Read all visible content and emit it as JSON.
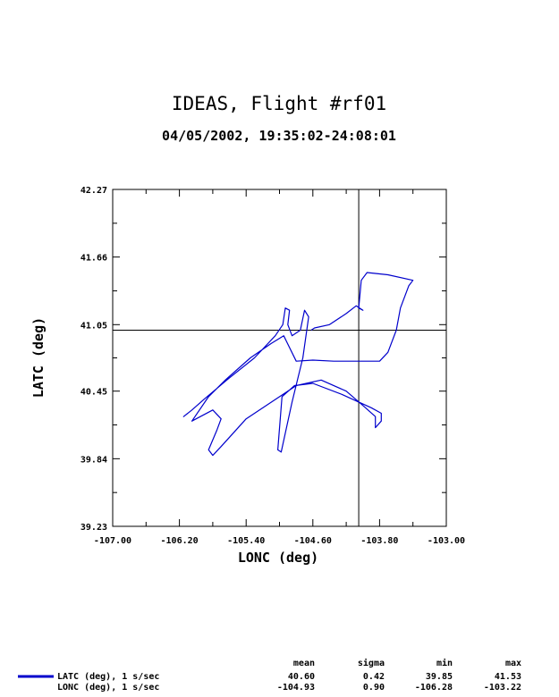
{
  "chart_data": {
    "type": "line",
    "title": "IDEAS, Flight #rf01",
    "subtitle": "04/05/2002, 19:35:02-24:08:01",
    "xlabel": "LONC (deg)",
    "ylabel": "LATC (deg)",
    "xlim": [
      -107.0,
      -103.0
    ],
    "ylim": [
      39.23,
      42.27
    ],
    "x_ticks": [
      "-107.00",
      "-106.20",
      "-105.40",
      "-104.60",
      "-103.80",
      "-103.00"
    ],
    "y_ticks": [
      "39.23",
      "39.84",
      "40.45",
      "41.05",
      "41.66",
      "42.27"
    ],
    "crosshair": {
      "x": -104.05,
      "y": 41.0
    },
    "color": "#0000cc",
    "series": [
      {
        "name": "LATC (deg), 1 s/sec",
        "points": [
          [
            -106.1,
            40.25
          ],
          [
            -106.15,
            40.22
          ],
          [
            -106.05,
            40.28
          ],
          [
            -105.9,
            40.38
          ],
          [
            -105.6,
            40.57
          ],
          [
            -105.3,
            40.75
          ],
          [
            -105.05,
            40.95
          ],
          [
            -104.96,
            41.05
          ],
          [
            -104.93,
            41.2
          ],
          [
            -104.88,
            41.18
          ],
          [
            -104.9,
            41.05
          ],
          [
            -104.85,
            40.95
          ],
          [
            -104.75,
            41.0
          ],
          [
            -104.7,
            41.18
          ],
          [
            -104.65,
            41.12
          ],
          [
            -104.72,
            40.75
          ],
          [
            -104.85,
            40.35
          ],
          [
            -104.98,
            39.9
          ],
          [
            -105.02,
            39.92
          ],
          [
            -104.97,
            40.4
          ],
          [
            -104.82,
            40.5
          ],
          [
            -104.6,
            40.52
          ],
          [
            -104.25,
            40.42
          ],
          [
            -103.9,
            40.3
          ],
          [
            -103.78,
            40.25
          ],
          [
            -103.78,
            40.18
          ],
          [
            -103.85,
            40.12
          ],
          [
            -103.85,
            40.22
          ],
          [
            -104.0,
            40.32
          ],
          [
            -104.2,
            40.45
          ],
          [
            -104.5,
            40.55
          ],
          [
            -104.8,
            40.5
          ],
          [
            -105.1,
            40.35
          ],
          [
            -105.4,
            40.2
          ],
          [
            -105.7,
            39.95
          ],
          [
            -105.8,
            39.87
          ],
          [
            -105.85,
            39.92
          ],
          [
            -105.75,
            40.1
          ],
          [
            -105.7,
            40.2
          ],
          [
            -105.8,
            40.28
          ],
          [
            -106.05,
            40.18
          ],
          [
            -105.85,
            40.4
          ],
          [
            -105.65,
            40.55
          ],
          [
            -105.35,
            40.75
          ],
          [
            -105.1,
            40.88
          ],
          [
            -104.95,
            40.95
          ],
          [
            -104.8,
            40.72
          ],
          [
            -104.6,
            40.73
          ],
          [
            -104.35,
            40.72
          ],
          [
            -104.0,
            40.72
          ],
          [
            -103.8,
            40.72
          ],
          [
            -103.7,
            40.8
          ],
          [
            -103.6,
            41.0
          ],
          [
            -103.55,
            41.2
          ],
          [
            -103.45,
            41.4
          ],
          [
            -103.4,
            41.45
          ],
          [
            -103.7,
            41.5
          ],
          [
            -103.95,
            41.52
          ],
          [
            -104.02,
            41.45
          ],
          [
            -104.05,
            41.2
          ],
          [
            -104.0,
            41.18
          ],
          [
            -104.08,
            41.22
          ],
          [
            -104.2,
            41.15
          ],
          [
            -104.4,
            41.05
          ],
          [
            -104.58,
            41.02
          ],
          [
            -104.62,
            41.0
          ]
        ]
      }
    ],
    "stats": {
      "headers": [
        "mean",
        "sigma",
        "min",
        "max"
      ],
      "rows": [
        {
          "name": "LATC (deg), 1 s/sec",
          "values": [
            "40.60",
            "0.42",
            "39.85",
            "41.53"
          ]
        },
        {
          "name": "LONC (deg), 1 s/sec",
          "values": [
            "-104.93",
            "0.90",
            "-106.28",
            "-103.22"
          ]
        }
      ]
    }
  }
}
